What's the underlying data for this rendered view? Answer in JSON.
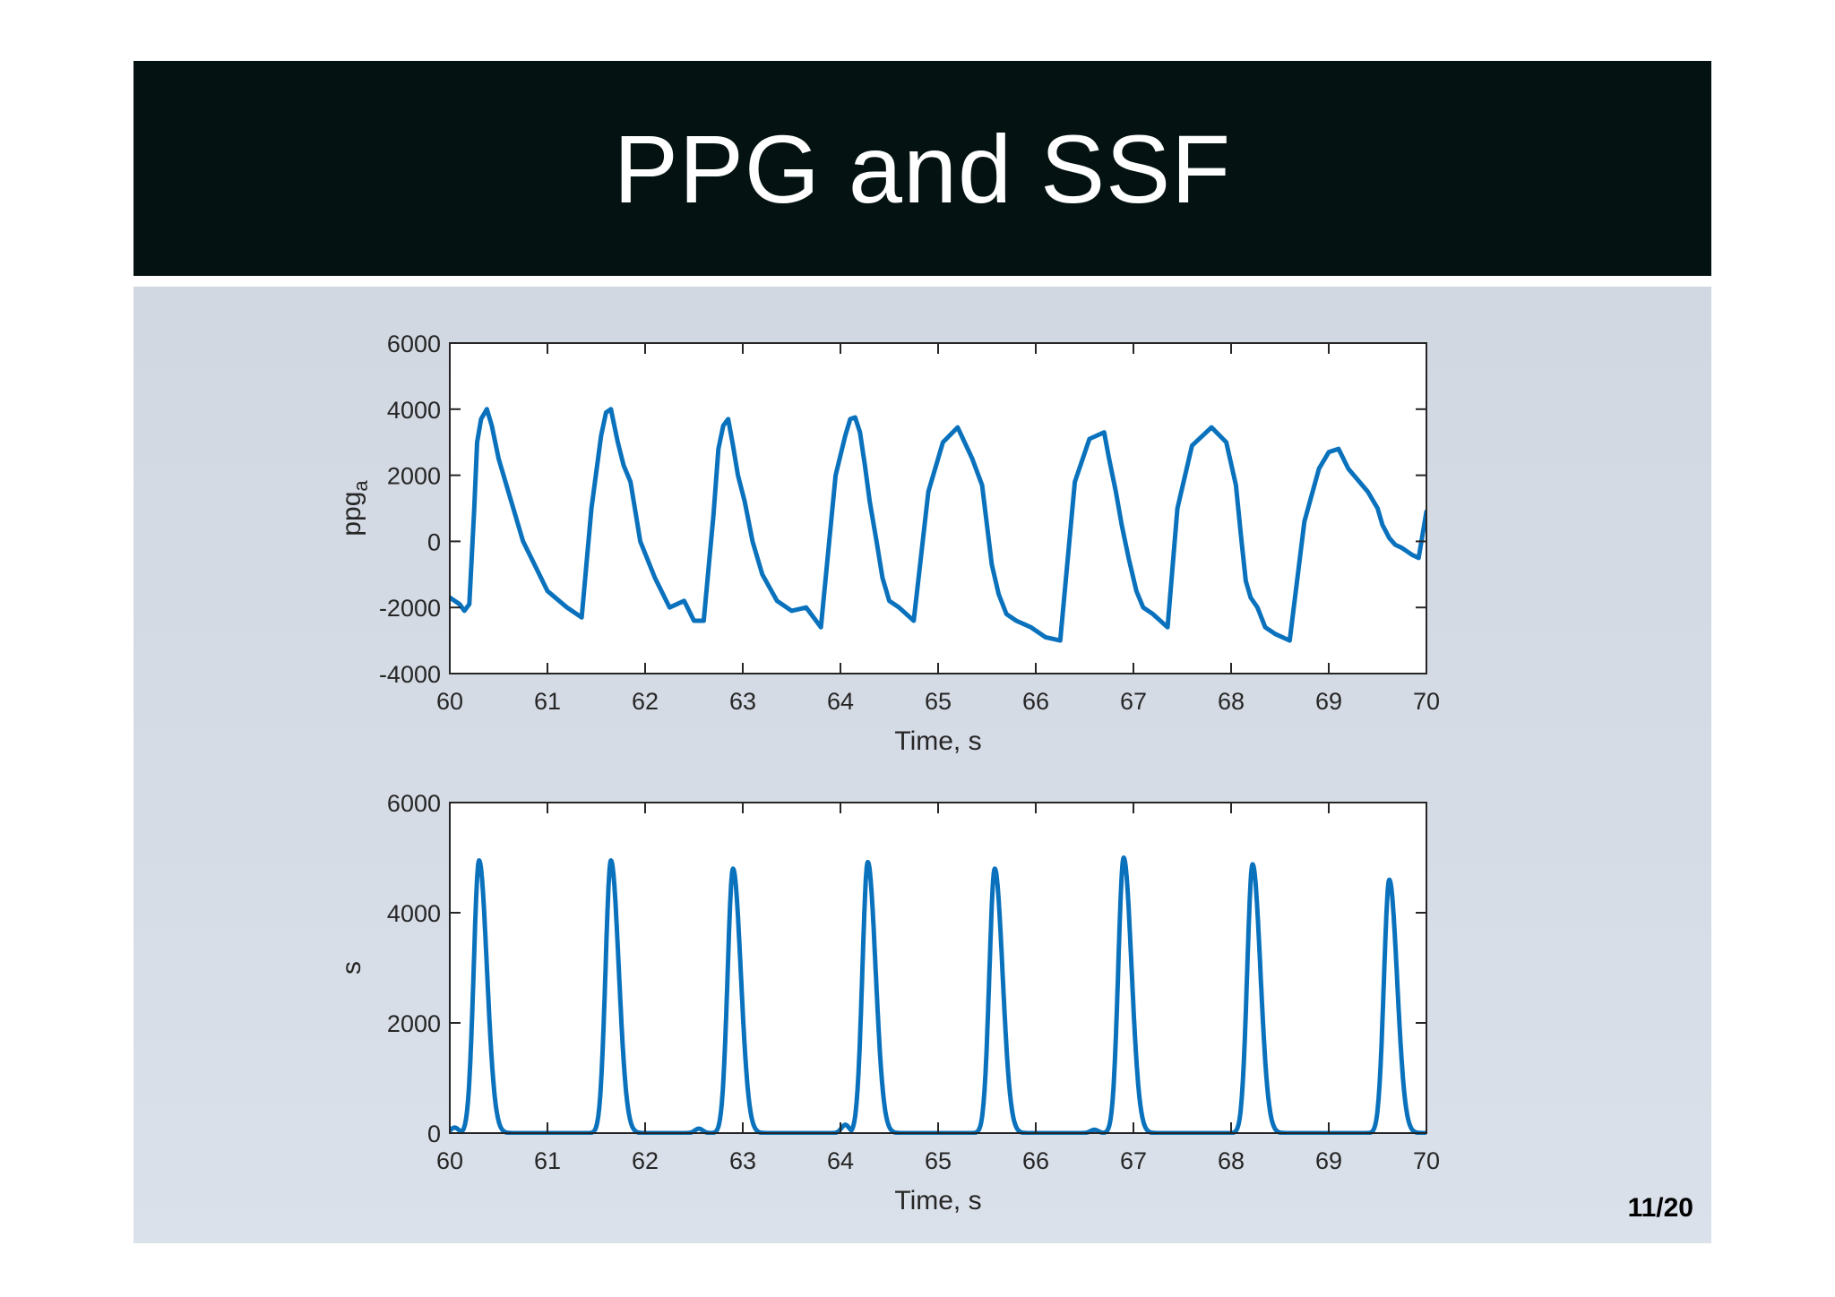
{
  "slide": {
    "title": "PPG and SSF",
    "page_number": "11/20"
  },
  "colors": {
    "title_bar": "#051212",
    "panel": "#d6dce6",
    "series": "#0a72bd",
    "axes": "#262626"
  },
  "chart_data": [
    {
      "type": "line",
      "xlabel": "Time, s",
      "ylabel": "ppg",
      "ylabel_subscript": "a",
      "xlim": [
        60,
        70
      ],
      "ylim": [
        -4000,
        6000
      ],
      "xticks": [
        60,
        61,
        62,
        63,
        64,
        65,
        66,
        67,
        68,
        69,
        70
      ],
      "yticks": [
        -4000,
        -2000,
        0,
        2000,
        4000,
        6000
      ],
      "grid": false,
      "series": [
        {
          "x": [
            60.0,
            60.1,
            60.15,
            60.2,
            60.25,
            60.28,
            60.32,
            60.38,
            60.43,
            60.5,
            60.6,
            60.75,
            60.85,
            61.0,
            61.2,
            61.35,
            61.45,
            61.55,
            61.6,
            61.65,
            61.72,
            61.78,
            61.85,
            61.95,
            62.1,
            62.25,
            62.4,
            62.5,
            62.6,
            62.7,
            62.75,
            62.8,
            62.85,
            62.9,
            62.95,
            63.02,
            63.1,
            63.2,
            63.35,
            63.5,
            63.65,
            63.8,
            63.95,
            64.05,
            64.1,
            64.15,
            64.2,
            64.25,
            64.3,
            64.37,
            64.43,
            64.5,
            64.6,
            64.75,
            64.9,
            65.05,
            65.2,
            65.35,
            65.45,
            65.5,
            65.55,
            65.62,
            65.7,
            65.8,
            65.95,
            66.1,
            66.25,
            66.4,
            66.55,
            66.7,
            66.75,
            66.82,
            66.88,
            66.95,
            67.03,
            67.1,
            67.2,
            67.35,
            67.45,
            67.6,
            67.8,
            67.95,
            68.05,
            68.1,
            68.15,
            68.2,
            68.27,
            68.35,
            68.45,
            68.6,
            68.75,
            68.9,
            69.0,
            69.1,
            69.2,
            69.4,
            69.5,
            69.55,
            69.62,
            69.68,
            69.75,
            69.8,
            69.85,
            69.92,
            70.0
          ],
          "y": [
            -1700,
            -1900,
            -2100,
            -1900,
            1000,
            3000,
            3700,
            4000,
            3500,
            2500,
            1500,
            0,
            -600,
            -1500,
            -2000,
            -2300,
            1000,
            3200,
            3900,
            4000,
            3000,
            2300,
            1800,
            0,
            -1100,
            -2000,
            -1800,
            -2400,
            -2400,
            800,
            2800,
            3500,
            3700,
            2900,
            2000,
            1200,
            0,
            -1000,
            -1800,
            -2100,
            -2000,
            -2600,
            2000,
            3200,
            3700,
            3750,
            3300,
            2300,
            1200,
            0,
            -1100,
            -1800,
            -2000,
            -2400,
            1500,
            3000,
            3450,
            2500,
            1700,
            500,
            -700,
            -1600,
            -2200,
            -2400,
            -2600,
            -2900,
            -3000,
            1800,
            3100,
            3300,
            2500,
            1500,
            500,
            -500,
            -1500,
            -2000,
            -2200,
            -2600,
            1000,
            2900,
            3450,
            3000,
            1700,
            200,
            -1200,
            -1700,
            -2000,
            -2600,
            -2800,
            -3000,
            600,
            2200,
            2700,
            2800,
            2200,
            1500,
            1000,
            500,
            100,
            -100,
            -200,
            -300,
            -400,
            -500,
            900
          ]
        }
      ]
    },
    {
      "type": "line",
      "xlabel": "Time, s",
      "ylabel": "s",
      "xlim": [
        60,
        70
      ],
      "ylim": [
        0,
        6000
      ],
      "xticks": [
        60,
        61,
        62,
        63,
        64,
        65,
        66,
        67,
        68,
        69,
        70
      ],
      "yticks": [
        0,
        2000,
        4000,
        6000
      ],
      "grid": false,
      "series": [
        {
          "peaks": [
            [
              60.3,
              4950
            ],
            [
              61.65,
              4950
            ],
            [
              62.9,
              4800
            ],
            [
              64.28,
              4920
            ],
            [
              65.58,
              4800
            ],
            [
              66.9,
              5000
            ],
            [
              68.22,
              4880
            ],
            [
              69.62,
              4600
            ]
          ],
          "bumps": [
            [
              60.05,
              100
            ],
            [
              62.55,
              80
            ],
            [
              64.05,
              150
            ],
            [
              66.6,
              60
            ]
          ]
        }
      ]
    }
  ]
}
